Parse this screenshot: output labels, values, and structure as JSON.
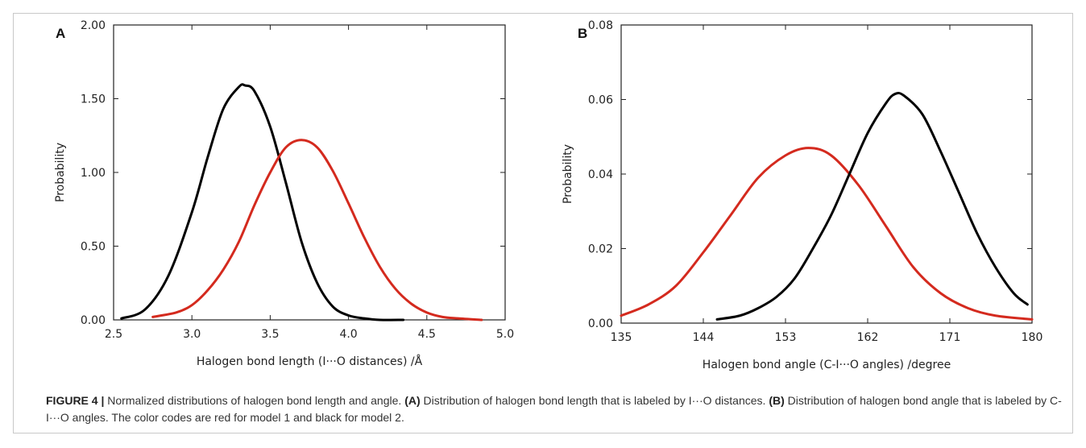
{
  "chart_data": [
    {
      "type": "line",
      "panel_label": "A",
      "xlabel": "Halogen bond length (I···O distances) /Å",
      "ylabel": "Probability",
      "xlim": [
        2.5,
        5.0
      ],
      "ylim": [
        0.0,
        2.0
      ],
      "xticks": [
        "2.5",
        "3.0",
        "3.5",
        "4.0",
        "4.5",
        "5.0"
      ],
      "yticks": [
        "0.00",
        "0.50",
        "1.00",
        "1.50",
        "2.00"
      ],
      "series": [
        {
          "color": "#000000",
          "x": [
            2.55,
            2.7,
            2.85,
            3.0,
            3.1,
            3.2,
            3.3,
            3.34,
            3.4,
            3.5,
            3.6,
            3.7,
            3.8,
            3.9,
            4.0,
            4.1,
            4.2,
            4.35
          ],
          "y": [
            0.01,
            0.07,
            0.3,
            0.73,
            1.1,
            1.43,
            1.58,
            1.59,
            1.55,
            1.31,
            0.93,
            0.53,
            0.25,
            0.09,
            0.03,
            0.01,
            0.0,
            0.0
          ]
        },
        {
          "color": "#d42a1e",
          "x": [
            2.75,
            2.9,
            3.0,
            3.1,
            3.2,
            3.3,
            3.4,
            3.5,
            3.6,
            3.7,
            3.8,
            3.9,
            4.0,
            4.1,
            4.2,
            4.3,
            4.4,
            4.5,
            4.6,
            4.7,
            4.85
          ],
          "y": [
            0.02,
            0.05,
            0.1,
            0.2,
            0.34,
            0.53,
            0.78,
            1.0,
            1.17,
            1.22,
            1.17,
            1.01,
            0.79,
            0.56,
            0.36,
            0.21,
            0.11,
            0.05,
            0.02,
            0.01,
            0.0
          ]
        }
      ]
    },
    {
      "type": "line",
      "panel_label": "B",
      "xlabel": "Halogen bond angle (C-I···O angles) /degree",
      "ylabel": "Probability",
      "xlim": [
        135,
        180
      ],
      "ylim": [
        0.0,
        0.08
      ],
      "xticks": [
        "135",
        "144",
        "153",
        "162",
        "171",
        "180"
      ],
      "yticks": [
        "0.00",
        "0.02",
        "0.04",
        "0.06",
        "0.08"
      ],
      "series": [
        {
          "color": "#d42a1e",
          "x": [
            135,
            138,
            141,
            144,
            147,
            150,
            153,
            155.5,
            158,
            161,
            164,
            167,
            170,
            173,
            176,
            180
          ],
          "y": [
            0.002,
            0.005,
            0.01,
            0.019,
            0.029,
            0.039,
            0.045,
            0.047,
            0.045,
            0.037,
            0.026,
            0.015,
            0.008,
            0.004,
            0.002,
            0.001
          ]
        },
        {
          "color": "#000000",
          "x": [
            145.5,
            148,
            150,
            152,
            154,
            156,
            158,
            160,
            162,
            164,
            165,
            166,
            168,
            170,
            172,
            174,
            176,
            178,
            179.5
          ],
          "y": [
            0.001,
            0.002,
            0.004,
            0.007,
            0.012,
            0.02,
            0.029,
            0.04,
            0.051,
            0.059,
            0.0615,
            0.061,
            0.056,
            0.046,
            0.035,
            0.024,
            0.015,
            0.008,
            0.005
          ]
        }
      ]
    }
  ],
  "caption": {
    "figure_label": "FIGURE 4 |",
    "text_1": " Normalized distributions of halogen bond length and angle. ",
    "label_a": "(A)",
    "text_2": " Distribution of halogen bond length that is labeled by I···O distances. ",
    "label_b": "(B)",
    "text_3": " Distribution of halogen bond angle that is labeled by C-I···O angles. The color codes are red for model 1 and black for model 2."
  }
}
